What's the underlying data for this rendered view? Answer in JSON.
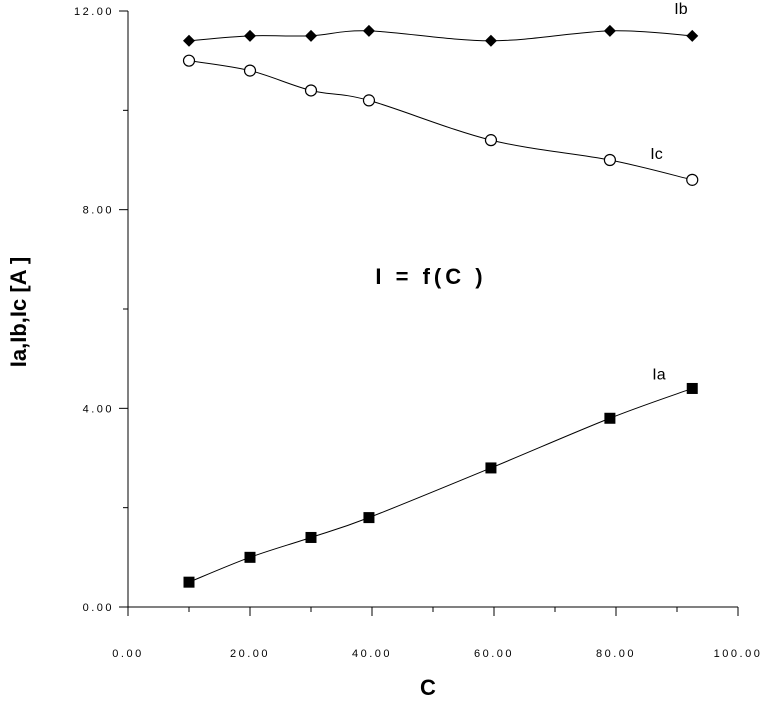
{
  "chart_data": {
    "type": "line",
    "title": "I = f(C )",
    "xlabel": "C",
    "ylabel": "Ia,Ib,Ic [A ]",
    "xlim": [
      0,
      100
    ],
    "ylim": [
      0,
      12
    ],
    "x_ticks": [
      {
        "value": 0,
        "label": "0.00"
      },
      {
        "value": 20,
        "label": "20.00"
      },
      {
        "value": 40,
        "label": "40.00"
      },
      {
        "value": 60,
        "label": "60.00"
      },
      {
        "value": 80,
        "label": "80.00"
      },
      {
        "value": 100,
        "label": "100.00"
      }
    ],
    "x_minor_ticks": [
      10,
      30,
      50,
      70,
      90
    ],
    "y_ticks": [
      {
        "value": 0,
        "label": "0.00"
      },
      {
        "value": 4,
        "label": "4.00"
      },
      {
        "value": 8,
        "label": "8.00"
      },
      {
        "value": 12,
        "label": "12.00"
      }
    ],
    "y_minor_ticks": [
      2,
      6,
      10
    ],
    "grid": false,
    "series": [
      {
        "name": "Ib",
        "marker": "diamond",
        "x": [
          10,
          20,
          30,
          39.5,
          59.5,
          79,
          92.5
        ],
        "values": [
          11.4,
          11.5,
          11.5,
          11.6,
          11.4,
          11.6,
          11.5
        ]
      },
      {
        "name": "Ic",
        "marker": "circle-open",
        "x": [
          10,
          20,
          30,
          39.5,
          59.5,
          79,
          92.5
        ],
        "values": [
          11.0,
          10.8,
          10.4,
          10.2,
          9.4,
          9.0,
          8.6
        ]
      },
      {
        "name": "Ia",
        "marker": "square",
        "x": [
          10,
          20,
          30,
          39.5,
          59.5,
          79,
          92.5
        ],
        "values": [
          0.5,
          1.0,
          1.4,
          1.8,
          2.8,
          3.8,
          4.4
        ]
      }
    ]
  }
}
